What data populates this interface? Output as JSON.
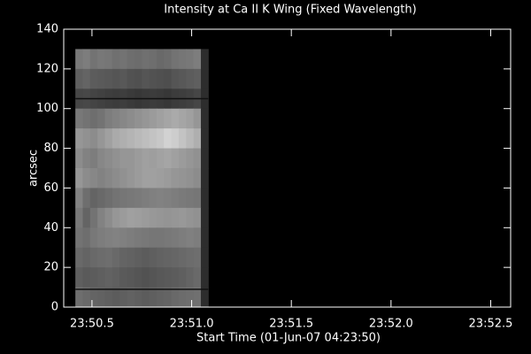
{
  "chart_data": {
    "type": "heatmap",
    "title": "Intensity at Ca II K Wing (Fixed Wavelength)",
    "x_label": "Start Time (01-Jun-07 04:23:50)",
    "y_label": "arcsec",
    "xlim": [
      21.5,
      156
    ],
    "ylim": [
      0,
      140
    ],
    "xticks": [
      {
        "value": 30,
        "label": "23:50.5"
      },
      {
        "value": 60,
        "label": "23:51.0"
      },
      {
        "value": 90,
        "label": "23:51.5"
      },
      {
        "value": 120,
        "label": "23:52.0"
      },
      {
        "value": 150,
        "label": "23:52.5"
      }
    ],
    "yticks": [
      0,
      20,
      40,
      60,
      80,
      100,
      120,
      140
    ],
    "extent": {
      "x": [
        25,
        65
      ],
      "y": [
        0,
        130
      ]
    },
    "z": [
      [
        120,
        125,
        115,
        120,
        118,
        112,
        115,
        110,
        108,
        112,
        110,
        105,
        108,
        115,
        118,
        120,
        125,
        45
      ],
      [
        95,
        100,
        92,
        90,
        88,
        85,
        88,
        82,
        80,
        85,
        82,
        80,
        78,
        85,
        88,
        92,
        95,
        45
      ],
      [
        70,
        72,
        68,
        65,
        62,
        60,
        62,
        58,
        55,
        58,
        60,
        58,
        55,
        60,
        62,
        65,
        70,
        45
      ],
      [
        120,
        115,
        110,
        115,
        125,
        130,
        135,
        140,
        145,
        150,
        155,
        160,
        165,
        170,
        165,
        160,
        150,
        45
      ],
      [
        150,
        145,
        140,
        150,
        160,
        170,
        175,
        180,
        185,
        190,
        195,
        200,
        210,
        205,
        195,
        185,
        175,
        45
      ],
      [
        140,
        130,
        125,
        135,
        140,
        145,
        150,
        150,
        155,
        160,
        158,
        162,
        165,
        160,
        155,
        150,
        145,
        45
      ],
      [
        150,
        140,
        135,
        130,
        135,
        140,
        145,
        150,
        155,
        160,
        160,
        158,
        155,
        150,
        148,
        145,
        140,
        45
      ],
      [
        130,
        110,
        100,
        105,
        110,
        115,
        118,
        120,
        122,
        125,
        128,
        130,
        128,
        125,
        122,
        120,
        118,
        45
      ],
      [
        120,
        100,
        115,
        130,
        140,
        150,
        155,
        160,
        158,
        155,
        152,
        150,
        148,
        150,
        152,
        148,
        145,
        45
      ],
      [
        115,
        110,
        120,
        125,
        128,
        130,
        128,
        125,
        122,
        120,
        118,
        118,
        120,
        122,
        125,
        128,
        125,
        45
      ],
      [
        105,
        100,
        105,
        108,
        110,
        105,
        100,
        98,
        95,
        92,
        95,
        98,
        100,
        102,
        105,
        108,
        110,
        45
      ],
      [
        95,
        90,
        92,
        95,
        98,
        95,
        90,
        88,
        85,
        82,
        85,
        88,
        90,
        92,
        95,
        100,
        105,
        45
      ],
      [
        110,
        105,
        100,
        98,
        95,
        92,
        95,
        98,
        95,
        92,
        95,
        98,
        100,
        105,
        108,
        110,
        112,
        45
      ]
    ],
    "hlines": [
      105,
      9
    ]
  }
}
